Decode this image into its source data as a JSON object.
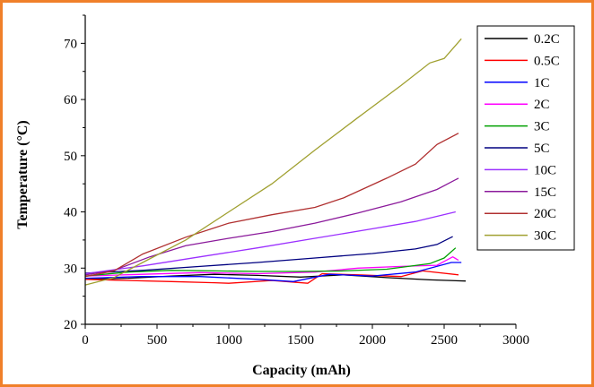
{
  "chart_data": {
    "type": "line",
    "xlabel": "Capacity (mAh)",
    "ylabel": "Temperature (°C)",
    "xlim": [
      0,
      3000
    ],
    "ylim": [
      20,
      75
    ],
    "xticks": [
      0,
      500,
      1000,
      1500,
      2000,
      2500,
      3000
    ],
    "yticks": [
      20,
      30,
      40,
      50,
      60,
      70
    ],
    "grid": false,
    "legend_position": "top-right",
    "series": [
      {
        "name": "0.2C",
        "color": "#000000",
        "x": [
          0,
          300,
          600,
          900,
          1200,
          1500,
          1800,
          2100,
          2400,
          2650
        ],
        "y": [
          28.0,
          28.2,
          28.6,
          28.9,
          28.7,
          28.4,
          28.8,
          28.3,
          27.9,
          27.7
        ]
      },
      {
        "name": "0.5C",
        "color": "#ff0000",
        "x": [
          0,
          300,
          600,
          900,
          1000,
          1300,
          1550,
          1650,
          1900,
          2200,
          2350,
          2600
        ],
        "y": [
          28.0,
          27.8,
          27.6,
          27.4,
          27.3,
          27.8,
          27.3,
          29.0,
          28.8,
          28.5,
          29.5,
          28.8
        ]
      },
      {
        "name": "1C",
        "color": "#0000ff",
        "x": [
          0,
          400,
          800,
          1200,
          1450,
          1700,
          2000,
          2300,
          2550,
          2620
        ],
        "y": [
          28.2,
          28.5,
          28.5,
          28.0,
          27.6,
          28.9,
          28.6,
          29.3,
          31.0,
          31.0
        ]
      },
      {
        "name": "2C",
        "color": "#ff00ff",
        "x": [
          0,
          400,
          800,
          1200,
          1600,
          1900,
          2200,
          2450,
          2560,
          2600
        ],
        "y": [
          28.6,
          28.9,
          29.2,
          29.0,
          29.3,
          30.0,
          30.3,
          30.5,
          32.0,
          31.4
        ]
      },
      {
        "name": "3C",
        "color": "#00a000",
        "x": [
          0,
          300,
          600,
          900,
          1200,
          1500,
          1800,
          2100,
          2400,
          2500,
          2580
        ],
        "y": [
          28.6,
          29.3,
          29.6,
          29.5,
          29.4,
          29.4,
          29.5,
          29.8,
          30.8,
          31.8,
          33.6
        ]
      },
      {
        "name": "5C",
        "color": "#000080",
        "x": [
          0,
          400,
          800,
          1200,
          1600,
          2000,
          2300,
          2450,
          2560
        ],
        "y": [
          29.1,
          29.6,
          30.3,
          31.0,
          31.8,
          32.6,
          33.4,
          34.2,
          35.6
        ]
      },
      {
        "name": "10C",
        "color": "#9b30ff",
        "x": [
          0,
          400,
          800,
          1200,
          1600,
          2000,
          2300,
          2580
        ],
        "y": [
          29.0,
          30.4,
          32.0,
          33.6,
          35.3,
          37.0,
          38.3,
          40.0
        ]
      },
      {
        "name": "15C",
        "color": "#8b1a9b",
        "x": [
          0,
          200,
          450,
          700,
          1000,
          1300,
          1600,
          1900,
          2200,
          2450,
          2600
        ],
        "y": [
          28.8,
          29.6,
          32.0,
          34.0,
          35.3,
          36.5,
          38.0,
          39.8,
          41.8,
          44.0,
          46.0
        ]
      },
      {
        "name": "20C",
        "color": "#b03030",
        "x": [
          0,
          200,
          400,
          700,
          1000,
          1300,
          1600,
          1800,
          2100,
          2300,
          2450,
          2600
        ],
        "y": [
          28.5,
          29.5,
          32.5,
          35.5,
          38.0,
          39.5,
          40.8,
          42.5,
          46.0,
          48.5,
          52.0,
          54.0
        ]
      },
      {
        "name": "30C",
        "color": "#a0a030",
        "x": [
          0,
          200,
          400,
          700,
          1000,
          1300,
          1600,
          1900,
          2200,
          2400,
          2500,
          2620
        ],
        "y": [
          27.0,
          28.3,
          31.0,
          35.0,
          40.0,
          45.0,
          51.0,
          56.8,
          62.5,
          66.5,
          67.3,
          70.8
        ]
      }
    ]
  }
}
